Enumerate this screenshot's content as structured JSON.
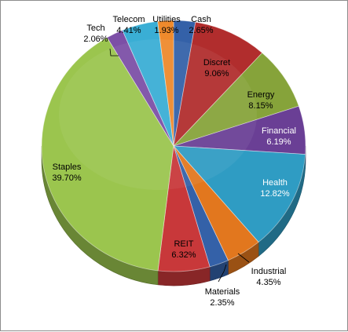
{
  "chart_data": {
    "type": "pie",
    "title": "",
    "slices": [
      {
        "label": "Cash",
        "value_text": "2.65%",
        "value": 2.65,
        "color": "#3461a8"
      },
      {
        "label": "Discret",
        "value_text": "9.06%",
        "value": 9.06,
        "color": "#b12d2d"
      },
      {
        "label": "Energy",
        "value_text": "8.15%",
        "value": 8.15,
        "color": "#86a33a"
      },
      {
        "label": "Financial",
        "value_text": "6.19%",
        "value": 6.19,
        "color": "#6a3f95"
      },
      {
        "label": "Health",
        "value_text": "12.82%",
        "value": 12.82,
        "color": "#2f9cc3"
      },
      {
        "label": "Industrial",
        "value_text": "4.35%",
        "value": 4.35,
        "color": "#e2771e"
      },
      {
        "label": "Materials",
        "value_text": "2.35%",
        "value": 2.35,
        "color": "#3461a8"
      },
      {
        "label": "REIT",
        "value_text": "6.32%",
        "value": 6.32,
        "color": "#c8383a"
      },
      {
        "label": "Staples",
        "value_text": "39.70%",
        "value": 39.7,
        "color": "#9bc54e"
      },
      {
        "label": "Tech",
        "value_text": "2.06%",
        "value": 2.06,
        "color": "#7c4fa6"
      },
      {
        "label": "Telecom",
        "value_text": "4.41%",
        "value": 4.41,
        "color": "#3aaed5"
      },
      {
        "label": "Utilities",
        "value_text": "1.93%",
        "value": 1.93,
        "color": "#ef8a2c"
      }
    ],
    "start_angle_deg": 0,
    "direction": "clockwise",
    "style": "3d"
  }
}
